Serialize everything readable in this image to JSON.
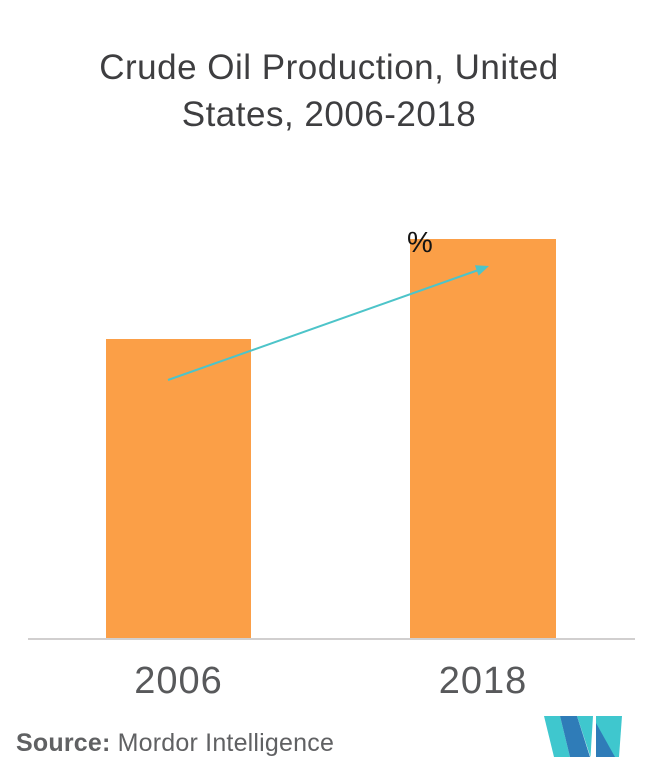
{
  "chart": {
    "title_lines": [
      "Crude Oil Production, United",
      "States, 2006-2018"
    ],
    "annotation_label": "%"
  },
  "chart_data": {
    "type": "bar",
    "title": "Crude Oil Production, United States, 2006-2018",
    "categories": [
      "2006",
      "2018"
    ],
    "values": [
      75,
      100
    ],
    "ylim": [
      0,
      100
    ],
    "xlabel": "",
    "ylabel": "",
    "grid": false,
    "legend": false,
    "bar_color": "#FB9F47",
    "annotations": [
      {
        "text": "%",
        "position": "top-left of 2018 bar"
      },
      {
        "type": "trend-arrow",
        "from": "2006 bar",
        "to": "2018 bar top",
        "direction": "up-right"
      }
    ]
  },
  "source": {
    "label": "Source:",
    "value": "Mordor Intelligence"
  },
  "colors": {
    "bar": "#FB9F47",
    "arrow": "#4DC4C9",
    "title_text": "#3E3E40",
    "tick_text": "#58595B",
    "source_text": "#606163",
    "axis_line": "#D1CFCF",
    "logo_blue": "#2F7CB8",
    "logo_teal": "#3FC7CE",
    "logo_edge": "#1E3D5C"
  },
  "logo": {
    "name": "mordor-intelligence-logomark"
  }
}
